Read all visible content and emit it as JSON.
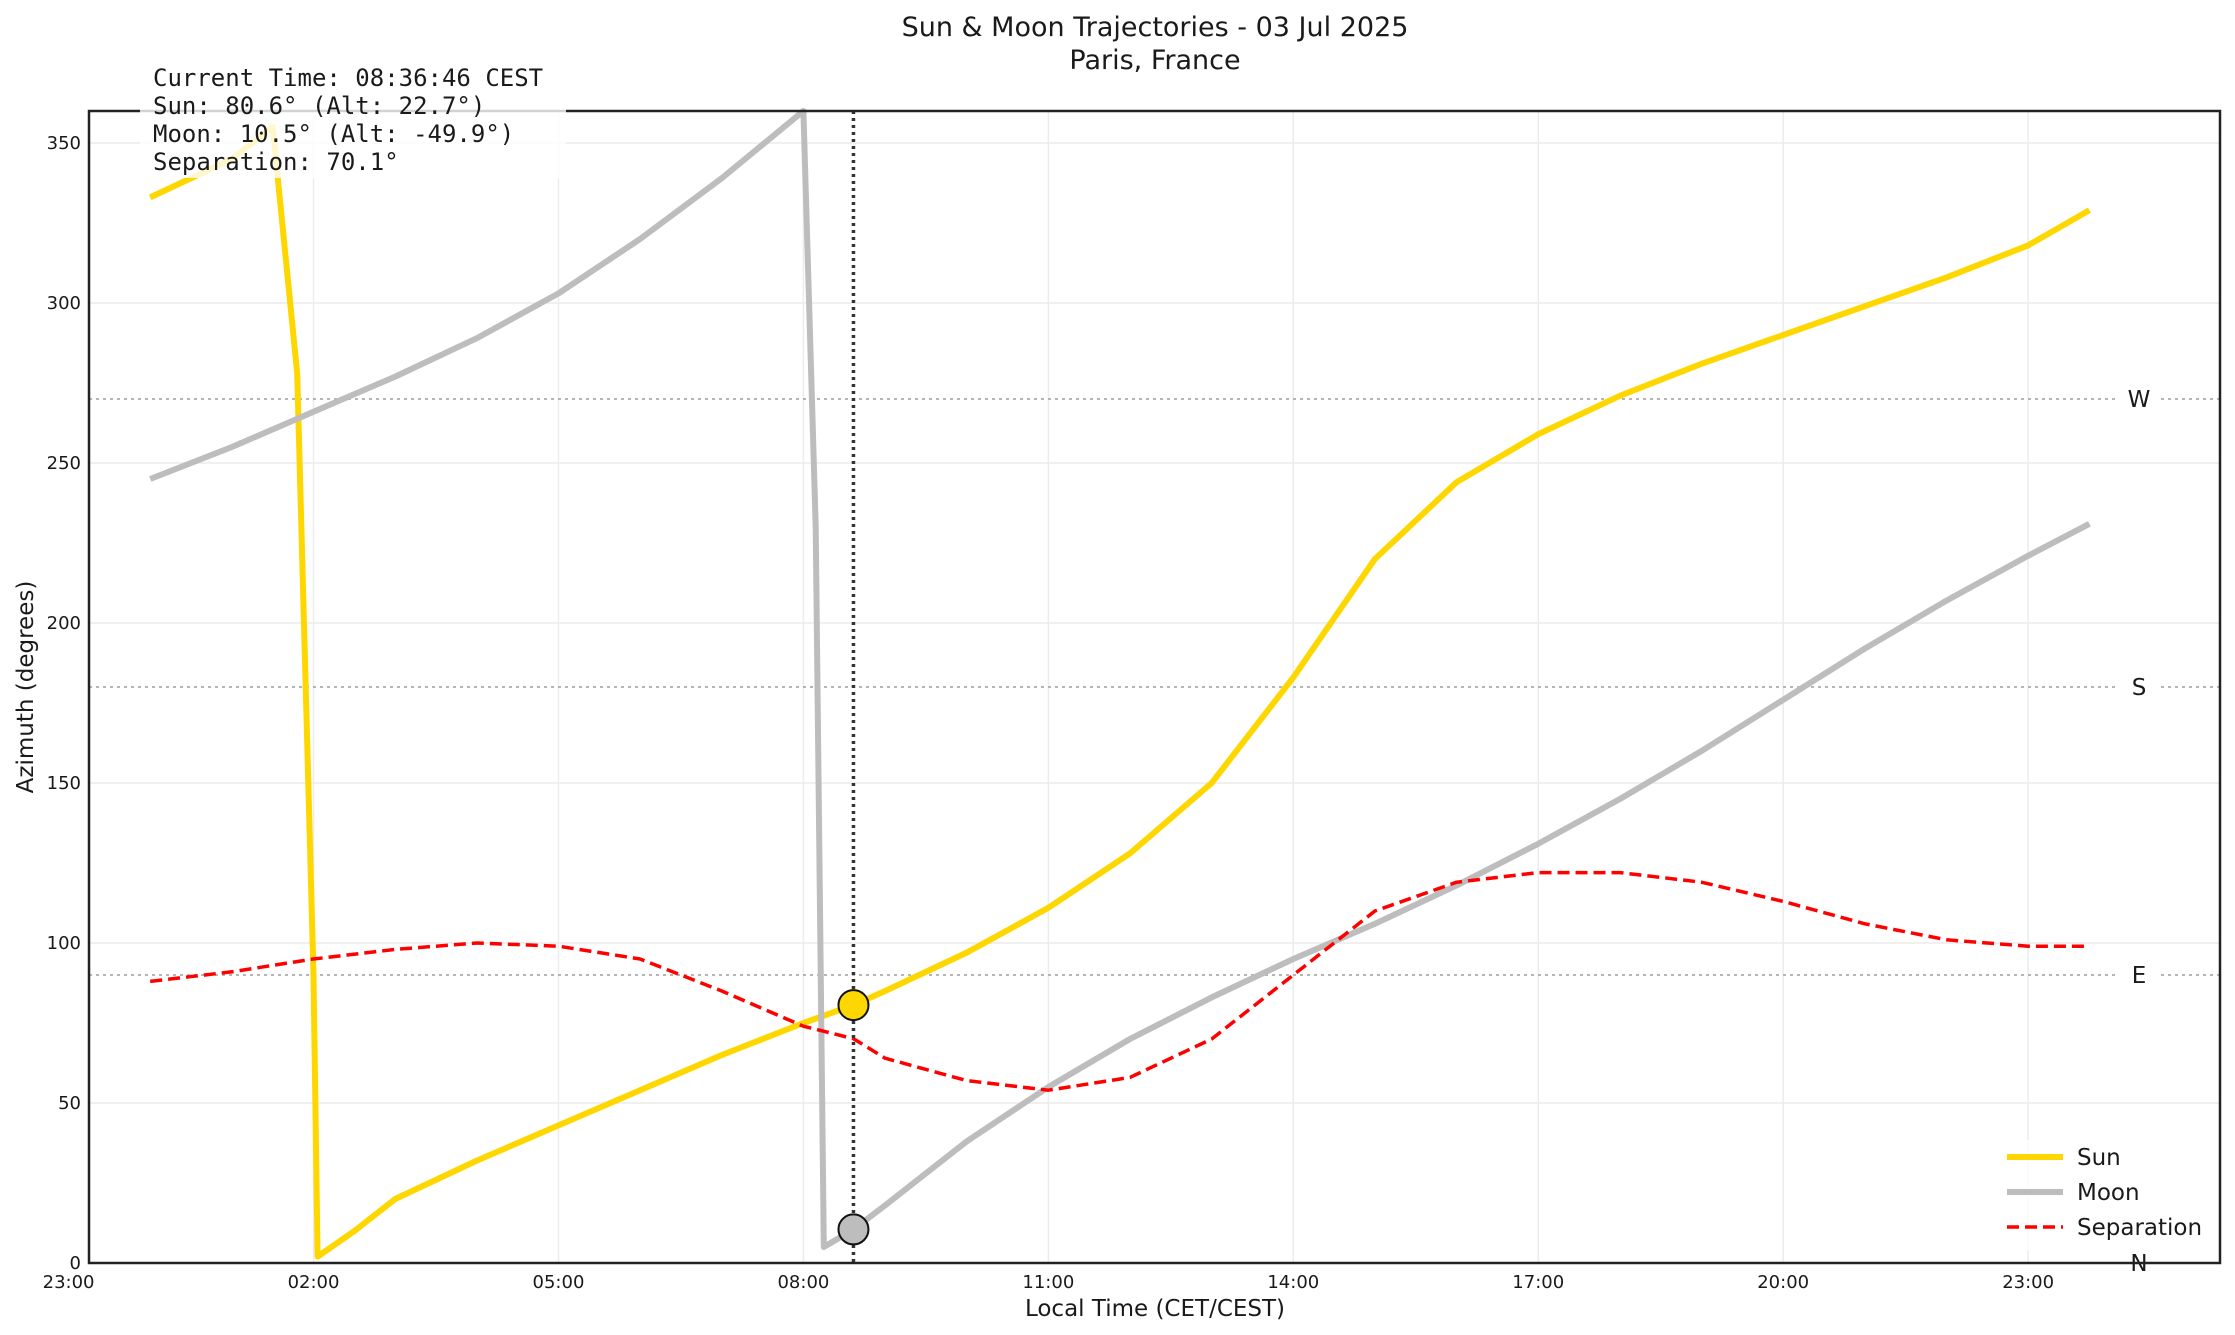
{
  "chart_data": {
    "type": "line",
    "title": "Sun & Moon Trajectories - 03 Jul 2025",
    "subtitle": "Paris, France",
    "xlabel": "Local Time (CET/CEST)",
    "ylabel": "Azimuth (degrees)",
    "xlim": [
      -0.75,
      25.35
    ],
    "ylim": [
      0,
      360
    ],
    "x_ticks": [
      {
        "x": -1,
        "label": "23:00"
      },
      {
        "x": 2,
        "label": "02:00"
      },
      {
        "x": 5,
        "label": "05:00"
      },
      {
        "x": 8,
        "label": "08:00"
      },
      {
        "x": 11,
        "label": "11:00"
      },
      {
        "x": 14,
        "label": "14:00"
      },
      {
        "x": 17,
        "label": "17:00"
      },
      {
        "x": 20,
        "label": "20:00"
      },
      {
        "x": 23,
        "label": "23:00"
      }
    ],
    "y_ticks": [
      0,
      50,
      100,
      150,
      200,
      250,
      300,
      350
    ],
    "grid": true,
    "legend_position": "lower-right",
    "cardinal_lines": [
      {
        "label": "N",
        "value": 0
      },
      {
        "label": "E",
        "value": 90
      },
      {
        "label": "S",
        "value": 180
      },
      {
        "label": "W",
        "value": 270
      }
    ],
    "current_time": 8.613,
    "current_time_label": "08:36:46",
    "series": [
      {
        "name": "Sun",
        "color": "#FFD700",
        "style": "solid",
        "points": [
          [
            0,
            333
          ],
          [
            1,
            345
          ],
          [
            1.5,
            355
          ],
          [
            1.8,
            278
          ],
          [
            2,
            90
          ],
          [
            2.05,
            2
          ],
          [
            2.5,
            10
          ],
          [
            3,
            20
          ],
          [
            4,
            32
          ],
          [
            5,
            43
          ],
          [
            6,
            54
          ],
          [
            7,
            65
          ],
          [
            8,
            75
          ],
          [
            8.613,
            80.6
          ],
          [
            9,
            85
          ],
          [
            10,
            97
          ],
          [
            11,
            111
          ],
          [
            12,
            128
          ],
          [
            13,
            150
          ],
          [
            14,
            183
          ],
          [
            15,
            220
          ],
          [
            16,
            244
          ],
          [
            17,
            259
          ],
          [
            18,
            271
          ],
          [
            19,
            281
          ],
          [
            20,
            290
          ],
          [
            21,
            299
          ],
          [
            22,
            308
          ],
          [
            23,
            318
          ],
          [
            23.75,
            329
          ]
        ]
      },
      {
        "name": "Moon",
        "color": "#BDBDBD",
        "style": "solid",
        "points": [
          [
            0,
            245
          ],
          [
            1,
            255
          ],
          [
            2,
            266
          ],
          [
            3,
            277
          ],
          [
            4,
            289
          ],
          [
            5,
            303
          ],
          [
            6,
            320
          ],
          [
            7,
            339
          ],
          [
            8,
            360
          ],
          [
            8.15,
            230
          ],
          [
            8.25,
            5
          ],
          [
            8.613,
            10.5
          ],
          [
            9,
            18
          ],
          [
            10,
            38
          ],
          [
            11,
            55
          ],
          [
            12,
            70
          ],
          [
            13,
            83
          ],
          [
            14,
            95
          ],
          [
            15,
            106
          ],
          [
            16,
            118
          ],
          [
            17,
            131
          ],
          [
            18,
            145
          ],
          [
            19,
            160
          ],
          [
            20,
            176
          ],
          [
            21,
            192
          ],
          [
            22,
            207
          ],
          [
            23,
            221
          ],
          [
            23.75,
            231
          ]
        ]
      },
      {
        "name": "Separation",
        "color": "#FF0000",
        "style": "dashed",
        "points": [
          [
            0,
            88
          ],
          [
            1,
            91
          ],
          [
            2,
            95
          ],
          [
            3,
            98
          ],
          [
            4,
            100
          ],
          [
            5,
            99
          ],
          [
            6,
            95
          ],
          [
            7,
            85
          ],
          [
            8,
            74
          ],
          [
            8.613,
            70.1
          ],
          [
            9,
            64
          ],
          [
            10,
            57
          ],
          [
            11,
            54
          ],
          [
            12,
            58
          ],
          [
            13,
            70
          ],
          [
            14,
            90
          ],
          [
            15,
            110
          ],
          [
            16,
            119
          ],
          [
            17,
            122
          ],
          [
            18,
            122
          ],
          [
            19,
            119
          ],
          [
            20,
            113
          ],
          [
            21,
            106
          ],
          [
            22,
            101
          ],
          [
            23,
            99
          ],
          [
            23.75,
            99
          ]
        ]
      }
    ],
    "markers": [
      {
        "name": "Sun",
        "x": 8.613,
        "y": 80.6,
        "color": "#FFD700"
      },
      {
        "name": "Moon",
        "x": 8.613,
        "y": 10.5,
        "color": "#BDBDBD"
      }
    ],
    "info_box": [
      "Current Time: 08:36:46 CEST",
      "Sun: 80.6° (Alt: 22.7°)",
      "Moon: 10.5° (Alt: -49.9°)",
      "Separation: 70.1°"
    ]
  }
}
